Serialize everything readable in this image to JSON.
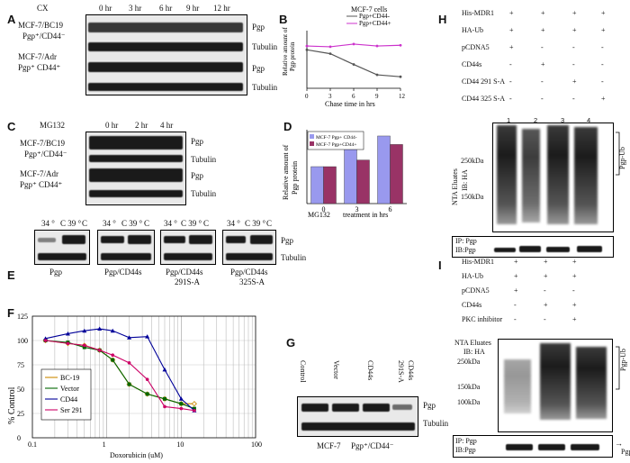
{
  "panels": {
    "A": "A",
    "B": "B",
    "C": "C",
    "D": "D",
    "E": "E",
    "F": "F",
    "G": "G",
    "H": "H",
    "I": "I"
  },
  "panelA": {
    "cx": "CX",
    "times": [
      "0 hr",
      "3 hr",
      "6 hr",
      "9 hr",
      "12 hr"
    ],
    "row1_label1": "MCF-7/BC19",
    "row1_label2": "Pgp⁺/CD44⁻",
    "row2_label1": "MCF-7/Adr",
    "row2_label2": "Pgp⁺ CD44⁺",
    "pgp": "Pgp",
    "tubulin": "Tubulin"
  },
  "panelB": {
    "legend_title": "MCF-7 cells",
    "ylabel_line1": "Relative amount of",
    "ylabel_line2": "Pgp protein",
    "xlabel": "Chase time in hrs",
    "ticks": [
      "0",
      "3",
      "6",
      "9",
      "12"
    ],
    "series_names": [
      "Pgp+CD44-",
      "Pgp+CD44+"
    ],
    "colors": [
      "#555555",
      "#cc33cc"
    ]
  },
  "panelC": {
    "mg132": "MG132",
    "times": [
      "0 hr",
      "2 hr",
      "4 hr"
    ],
    "row1_label1": "MCF-7/BC19",
    "row1_label2": "Pgp⁺/CD44⁻",
    "row2_label1": "MCF-7/Adr",
    "row2_label2": "Pgp⁺ CD44⁺",
    "pgp": "Pgp",
    "tubulin": "Tubulin"
  },
  "panelD": {
    "ylabel_line1": "Relative amount of",
    "ylabel_line2": "Pgp protein",
    "xlabel_part1": "MG132",
    "xlabel_part2": "treatment in hrs",
    "legend": [
      "MCF-7 Pgp+ CD44-",
      "MCF-7 Pgp+CD44+"
    ],
    "colors": [
      "#9999ee",
      "#993366"
    ]
  },
  "panelE": {
    "temps": [
      "34 °",
      "C 39 °",
      "C"
    ],
    "labels": [
      "Pgp",
      "Pgp/CD44s",
      "Pgp/CD44s",
      "Pgp/CD44s"
    ],
    "sublabels": [
      "",
      "",
      "291S-A",
      "325S-A"
    ],
    "pgp": "Pgp",
    "tubulin": "Tubulin"
  },
  "panelF": {
    "ylabel": "% Control",
    "xlabel": "Doxorubicin (uM)",
    "xticks": [
      "0.1",
      "1",
      "10",
      "100"
    ],
    "yticks": [
      "0",
      "25",
      "50",
      "75",
      "100",
      "125"
    ],
    "legend": [
      "BC-19",
      "Vector",
      "CD44",
      "Ser 291"
    ],
    "colors": [
      "#cc8800",
      "#006600",
      "#000099",
      "#cc0066"
    ]
  },
  "panelG": {
    "cols": [
      "Control",
      "Vector",
      "CD44s",
      "291S-A",
      "CD44s"
    ],
    "pgp": "Pgp",
    "tubulin": "Tubulin",
    "caption1": "MCF-7",
    "caption2": "Pgp⁺/CD44⁻"
  },
  "panelH": {
    "rows": [
      {
        "label": "His-MDR1",
        "vals": [
          "+",
          "+",
          "+",
          "+"
        ]
      },
      {
        "label": "HA-Ub",
        "vals": [
          "+",
          "+",
          "+",
          "+"
        ]
      },
      {
        "label": "pCDNA5",
        "vals": [
          "+",
          "-",
          "-",
          "-"
        ]
      },
      {
        "label": "CD44s",
        "vals": [
          "-",
          "+",
          "-",
          "-"
        ]
      },
      {
        "label": "CD44 291 S-A",
        "vals": [
          "-",
          "-",
          "+",
          "-"
        ]
      },
      {
        "label": "CD44 325 S-A",
        "vals": [
          "-",
          "-",
          "-",
          "+"
        ]
      }
    ],
    "lanes": [
      "1",
      "2",
      "3",
      "4"
    ],
    "nta1": "NTA Eluates",
    "nta2": "IB: HA",
    "mw": [
      "250kDa",
      "150kDa"
    ],
    "pgpub": "Pgp-Ub",
    "ip1": "IP: Pgp",
    "ip2": "IB:Pgp"
  },
  "panelI": {
    "rows": [
      {
        "label": "His-MDR1",
        "vals": [
          "+",
          "+",
          "+"
        ]
      },
      {
        "label": "HA-Ub",
        "vals": [
          "+",
          "+",
          "+"
        ]
      },
      {
        "label": "pCDNA5",
        "vals": [
          "+",
          "-",
          "-"
        ]
      },
      {
        "label": "CD44s",
        "vals": [
          "-",
          "+",
          "+"
        ]
      },
      {
        "label": "PKC inhibitor",
        "vals": [
          "-",
          "-",
          "+"
        ]
      }
    ],
    "nta1": "NTA Eluates",
    "nta2": "IB: HA",
    "mw": [
      "250kDa",
      "150kDa",
      "100kDa"
    ],
    "pgpub": "Pgp-Ub",
    "ip1": "IP: Pgp",
    "ip2": "IB:Pgp",
    "pgp": "Pgp"
  },
  "chart_data": [
    {
      "panel": "B",
      "type": "line",
      "title": "",
      "xlabel": "Chase time in hrs",
      "ylabel": "Relative amount of Pgp protein",
      "x": [
        0,
        3,
        6,
        9,
        12
      ],
      "xlim": [
        0,
        12
      ],
      "ylim": [
        0,
        150
      ],
      "series": [
        {
          "name": "Pgp+CD44-",
          "values": [
            100,
            90,
            62,
            35,
            30
          ]
        },
        {
          "name": "Pgp+CD44+",
          "values": [
            110,
            108,
            115,
            110,
            112
          ]
        }
      ]
    },
    {
      "panel": "D",
      "type": "bar",
      "xlabel": "MG132 treatment in hrs",
      "ylabel": "Relative amount of Pgp protein",
      "categories": [
        "0",
        "3",
        "6"
      ],
      "ylim": [
        0,
        200
      ],
      "series": [
        {
          "name": "MCF-7 Pgp+ CD44-",
          "values": [
            100,
            180,
            183
          ]
        },
        {
          "name": "MCF-7 Pgp+CD44+",
          "values": [
            100,
            118,
            160
          ]
        }
      ]
    },
    {
      "panel": "F",
      "type": "line",
      "scale": "log-x",
      "xlabel": "Doxorubicin (uM)",
      "ylabel": "% Control",
      "xlim": [
        0.1,
        100
      ],
      "ylim": [
        0,
        125
      ],
      "series": [
        {
          "name": "BC-19",
          "x": [
            0.15,
            0.3,
            0.5,
            0.8,
            1.2,
            2,
            3.5,
            6,
            10,
            15
          ],
          "values": [
            100,
            97,
            95,
            90,
            80,
            55,
            45,
            40,
            35,
            35
          ]
        },
        {
          "name": "Vector",
          "x": [
            0.15,
            0.3,
            0.5,
            0.8,
            1.2,
            2,
            3.5,
            6,
            10,
            15
          ],
          "values": [
            100,
            98,
            93,
            90,
            80,
            55,
            45,
            40,
            35,
            30
          ]
        },
        {
          "name": "CD44",
          "x": [
            0.15,
            0.3,
            0.5,
            0.8,
            1.2,
            2,
            3.5,
            6,
            10,
            15
          ],
          "values": [
            102,
            107,
            110,
            112,
            110,
            103,
            104,
            70,
            40,
            28
          ]
        },
        {
          "name": "Ser 291",
          "x": [
            0.15,
            0.3,
            0.5,
            0.8,
            1.2,
            2,
            3.5,
            6,
            10,
            15
          ],
          "values": [
            100,
            97,
            95,
            90,
            85,
            77,
            60,
            32,
            30,
            28
          ]
        }
      ]
    }
  ]
}
